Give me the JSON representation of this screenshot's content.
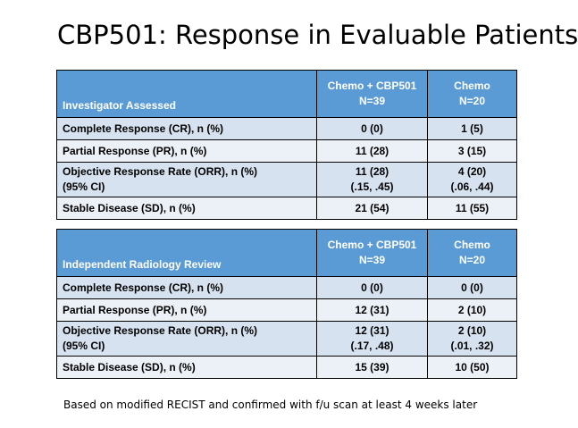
{
  "title": "CBP501: Response in Evaluable Patients",
  "columns": {
    "arm1_line1": "Chemo + CBP501",
    "arm1_line2": "N=39",
    "arm2_line1": "Chemo",
    "arm2_line2": "N=20"
  },
  "table1": {
    "header": "Investigator Assessed",
    "rows": [
      {
        "label1": "Complete Response (CR), n (%)",
        "arm1": "0 (0)",
        "arm2": "1 (5)"
      },
      {
        "label1": "Partial Response (PR), n (%)",
        "arm1": "11 (28)",
        "arm2": "3 (15)"
      },
      {
        "label1": "Objective Response Rate (ORR), n (%)",
        "label2": "(95% CI)",
        "arm1": "11 (28)",
        "arm1_ci": "(.15, .45)",
        "arm2": "4 (20)",
        "arm2_ci": "(.06, .44)"
      },
      {
        "label1": "Stable Disease (SD), n (%)",
        "arm1": "21 (54)",
        "arm2": "11 (55)"
      }
    ]
  },
  "table2": {
    "header": "Independent Radiology Review",
    "rows": [
      {
        "label1": "Complete Response (CR), n (%)",
        "arm1": "0 (0)",
        "arm2": "0 (0)"
      },
      {
        "label1": "Partial Response (PR), n (%)",
        "arm1": "12 (31)",
        "arm2": "2 (10)"
      },
      {
        "label1": "Objective Response Rate (ORR), n (%)",
        "label2": "(95% CI)",
        "arm1": "12 (31)",
        "arm1_ci": "(.17, .48)",
        "arm2": "2 (10)",
        "arm2_ci": "(.01, .32)"
      },
      {
        "label1": "Stable Disease (SD), n (%)",
        "arm1": "15 (39)",
        "arm2": "10 (50)"
      }
    ]
  },
  "footnote": "Based on modified RECIST and confirmed with f/u scan at least 4 weeks later",
  "colors": {
    "header_bg": "#5b9bd5",
    "row_odd_bg": "#d6e2ef",
    "row_even_bg": "#ecf1f7"
  }
}
